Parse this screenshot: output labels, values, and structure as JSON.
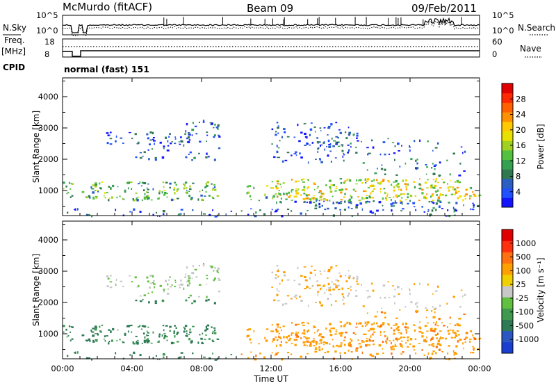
{
  "header": {
    "station": "McMurdo (fitACF)",
    "beam": "Beam 09",
    "date": "09/Feb/2011"
  },
  "side_labels": {
    "nsky": "N.Sky",
    "freq": "Freq.",
    "mhz": "[MHz]",
    "cpid": "CPID",
    "nsearch": "N.Search",
    "nave": "Nave"
  },
  "cpid_text": "normal (fast) 151",
  "chart_data": [
    {
      "type": "line",
      "name": "noise",
      "left_ticks": [
        "10^5",
        "10^0"
      ],
      "right_ticks": [
        "10^5",
        "10^0"
      ],
      "left_label": "N.Sky",
      "right_label": "N.Search"
    },
    {
      "type": "line",
      "name": "frequency",
      "left_ticks": [
        "18",
        "8"
      ],
      "right_ticks": [
        "60",
        "0"
      ],
      "left_label": "Freq. [MHz]",
      "right_label": "Nave"
    },
    {
      "type": "heatmap",
      "name": "power",
      "ylabel": "Slant Range [km]",
      "yticks": [
        1000,
        2000,
        3000,
        4000
      ],
      "ylim": [
        200,
        4600
      ],
      "colorbar": {
        "label": "Power [dB]",
        "ticks": [
          "28",
          "24",
          "20",
          "16",
          "12",
          "8",
          "4"
        ],
        "colors": [
          "#1414ff",
          "#2050ff",
          "#2b5fc4",
          "#307850",
          "#34a050",
          "#53c040",
          "#a0d020",
          "#e8e000",
          "#ffc800",
          "#ff9000",
          "#ff6000",
          "#ff2800",
          "#e00000"
        ]
      }
    },
    {
      "type": "heatmap",
      "name": "velocity",
      "ylabel": "Slant Range [km]",
      "yticks": [
        1000,
        2000,
        3000,
        4000
      ],
      "ylim": [
        200,
        4600
      ],
      "colorbar": {
        "label": "Velocity [m s⁻¹]",
        "ticks": [
          "1000",
          "500",
          "100",
          "25",
          "-25",
          "-100",
          "-500",
          "-1000"
        ],
        "colors": [
          "#1a3fd0",
          "#2a58c0",
          "#2e7a55",
          "#3f9a50",
          "#62c040",
          "#c8c8c8",
          "#f0d000",
          "#ffa000",
          "#ff7010",
          "#ff3010",
          "#e00000"
        ]
      }
    }
  ],
  "xaxis": {
    "label": "Time UT",
    "ticks": [
      "00:00",
      "04:00",
      "08:00",
      "12:00",
      "16:00",
      "20:00",
      "00:00"
    ]
  }
}
